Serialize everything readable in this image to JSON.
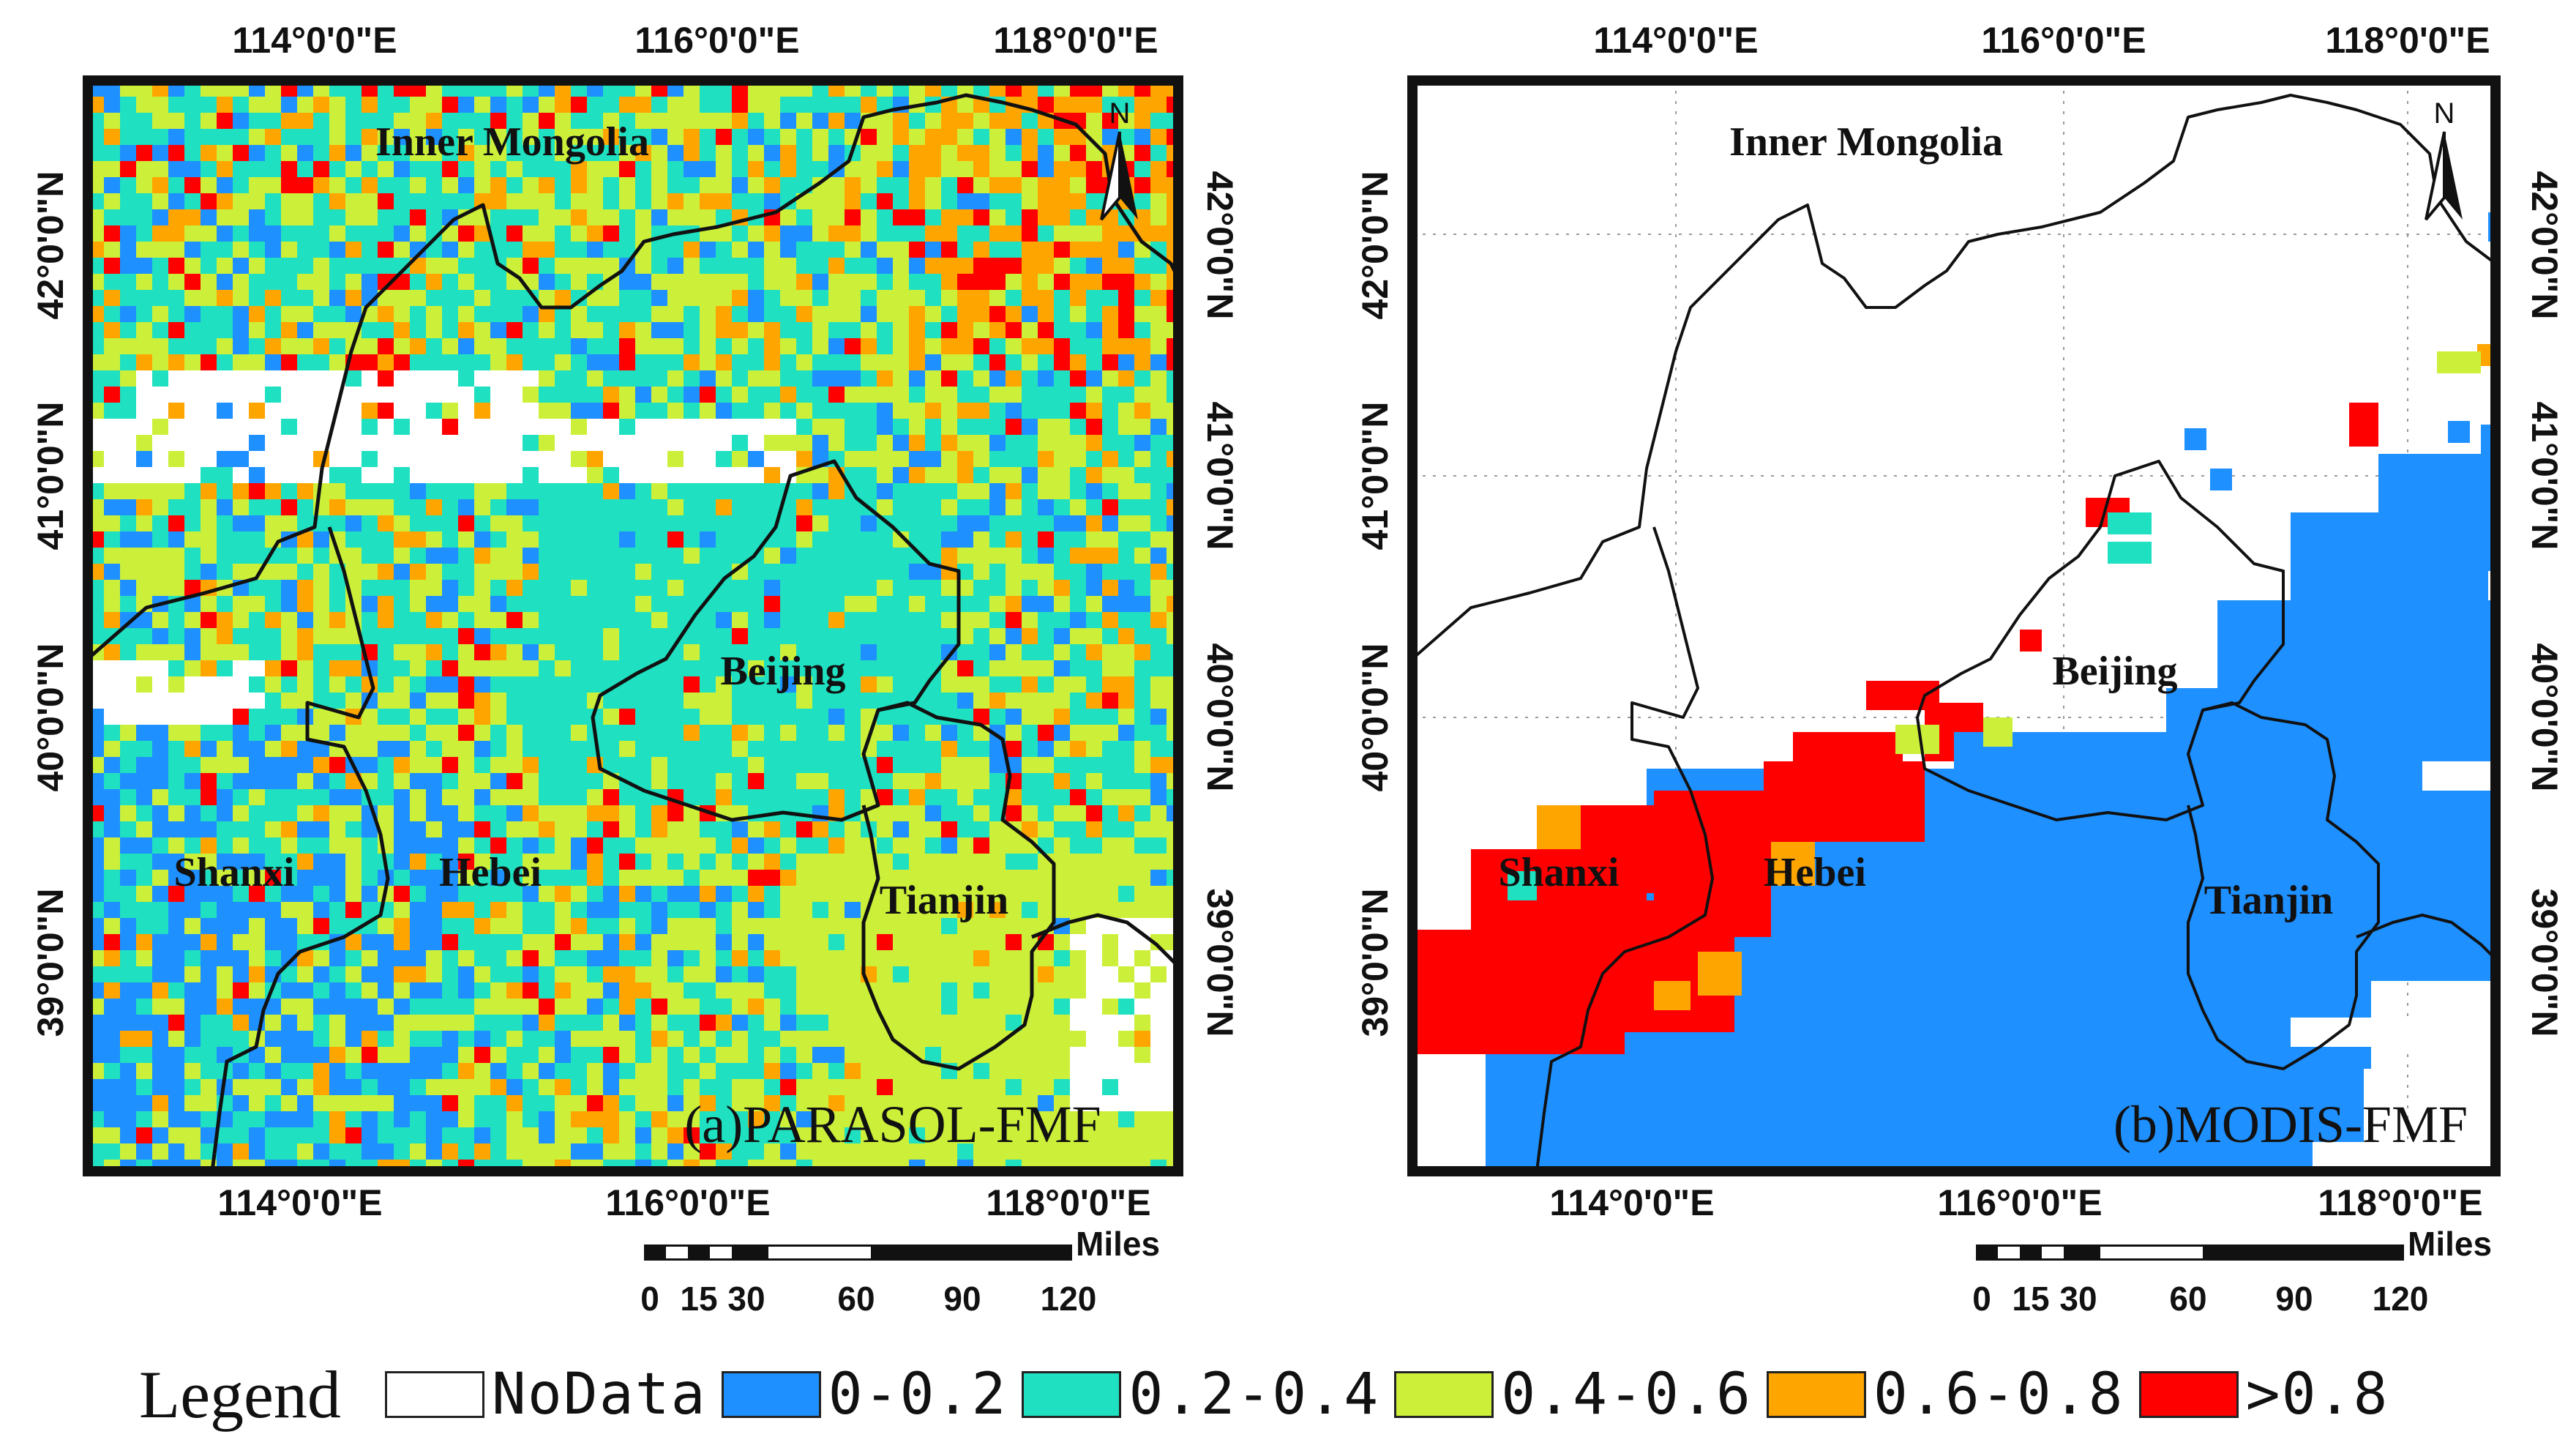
{
  "colors": {
    "nodata": "#ffffff",
    "c1": "#1e90ff",
    "c2": "#1fe0c0",
    "c3": "#ccf03a",
    "c4": "#ffa500",
    "c5": "#ff0000"
  },
  "panel_a": {
    "title": "(a)PARASOL-FMF",
    "top_ticks": [
      "114°0'0\"E",
      "116°0'0\"E",
      "118°0'0\"E"
    ],
    "bottom_ticks": [
      "114°0'0\"E",
      "116°0'0\"E",
      "118°0'0\"E"
    ],
    "left_ticks": [
      "42°0'0\"N",
      "41°0'0\"N",
      "40°0'0\"N",
      "39°0'0\"N"
    ],
    "right_ticks": [
      "42°0'0\"N",
      "41°0'0\"N",
      "40°0'0\"N",
      "39°0'0\"N"
    ],
    "regions": [
      "Inner Mongolia",
      "Beijing",
      "Shanxi",
      "Hebei",
      "Tianjin"
    ],
    "north": "N",
    "scale_unit": "Miles",
    "scale_labels": [
      "0",
      "15",
      "30",
      "60",
      "90",
      "120"
    ]
  },
  "panel_b": {
    "title": "(b)MODIS-FMF",
    "top_ticks": [
      "114°0'0\"E",
      "116°0'0\"E",
      "118°0'0\"E"
    ],
    "bottom_ticks": [
      "114°0'0\"E",
      "116°0'0\"E",
      "118°0'0\"E"
    ],
    "left_ticks": [
      "42°0'0\"N",
      "41°0'0\"N",
      "40°0'0\"N",
      "39°0'0\"N"
    ],
    "right_ticks": [
      "42°0'0\"N",
      "41°0'0\"N",
      "40°0'0\"N",
      "39°0'0\"N"
    ],
    "regions": [
      "Inner Mongolia",
      "Beijing",
      "Shanxi",
      "Hebei",
      "Tianjin"
    ],
    "north": "N",
    "scale_unit": "Miles",
    "scale_labels": [
      "0",
      "15",
      "30",
      "60",
      "90",
      "120"
    ]
  },
  "legend": {
    "title": "Legend",
    "items": [
      {
        "label": "NoData",
        "color": "#ffffff"
      },
      {
        "label": "0-0.2",
        "color": "#1e90ff"
      },
      {
        "label": "0.2-0.4",
        "color": "#1fe0c0"
      },
      {
        "label": "0.4-0.6",
        "color": "#ccf03a"
      },
      {
        "label": "0.6-0.8",
        "color": "#ffa500"
      },
      {
        "label": ">0.8",
        "color": "#ff0000"
      }
    ]
  }
}
